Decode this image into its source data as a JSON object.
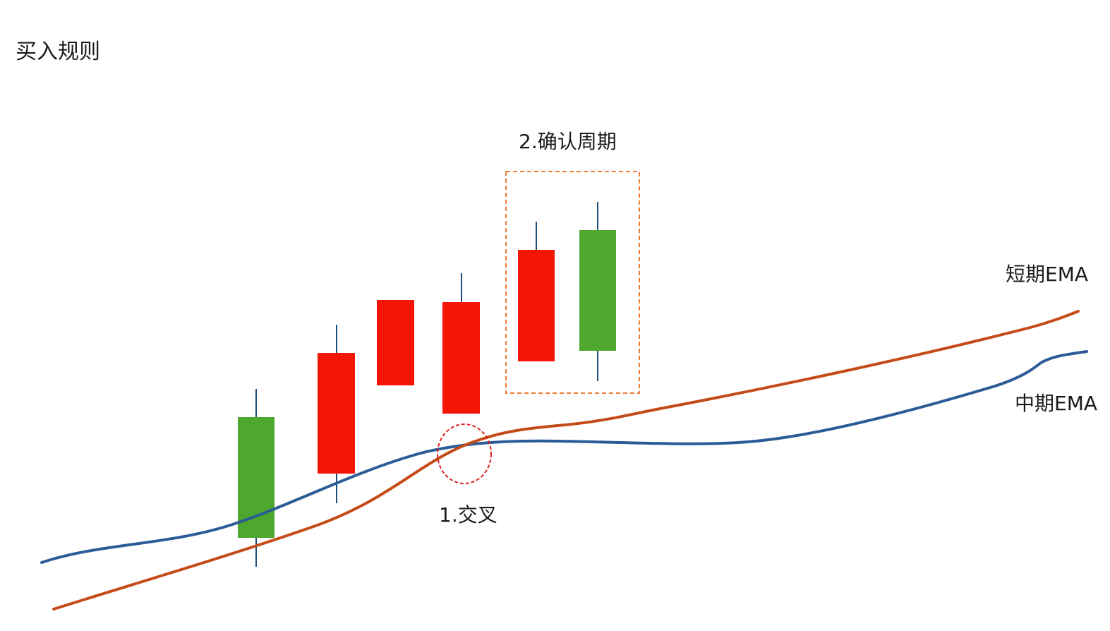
{
  "title": "买入规则",
  "annotations": {
    "cross": "1.交叉",
    "confirm": "2.确认周期"
  },
  "lines": {
    "short_ema": {
      "label": "短期EMA",
      "color": "#c44b17"
    },
    "mid_ema": {
      "label": "中期EMA",
      "color": "#2b5c97"
    }
  },
  "candle_colors": {
    "green": "#4ea72e",
    "red": "#f31505",
    "wick": "#1f4e79"
  },
  "marker_colors": {
    "circle": "#e02020",
    "box": "#ed7d31"
  }
}
